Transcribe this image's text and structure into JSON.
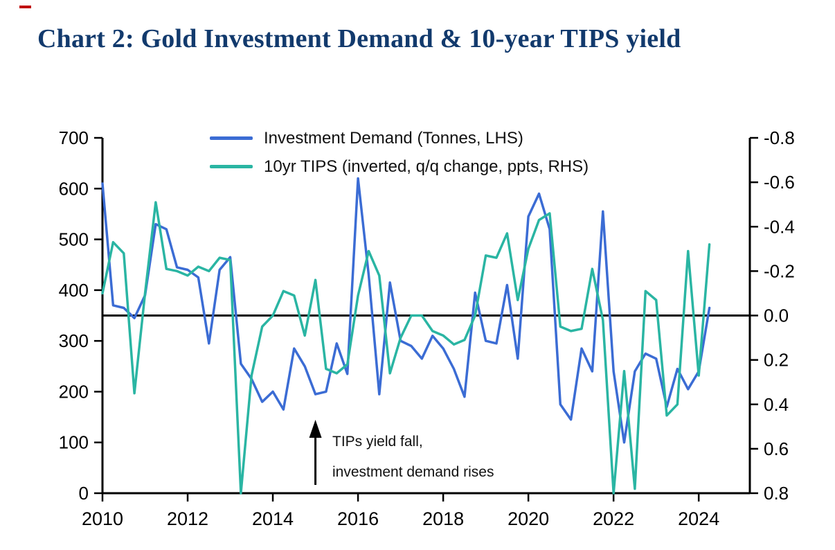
{
  "title": "Chart 2: Gold Investment Demand & 10-year TIPS yield",
  "red_tick_color": "#c00000",
  "title_color": "#123a6d",
  "chart_data": {
    "type": "line",
    "title": "Chart 2: Gold Investment Demand & 10-year TIPS yield",
    "legend_position": "top-center-inside",
    "grid": false,
    "quarters": [
      "2010Q1",
      "2010Q2",
      "2010Q3",
      "2010Q4",
      "2011Q1",
      "2011Q2",
      "2011Q3",
      "2011Q4",
      "2012Q1",
      "2012Q2",
      "2012Q3",
      "2012Q4",
      "2013Q1",
      "2013Q2",
      "2013Q3",
      "2013Q4",
      "2014Q1",
      "2014Q2",
      "2014Q3",
      "2014Q4",
      "2015Q1",
      "2015Q2",
      "2015Q3",
      "2015Q4",
      "2016Q1",
      "2016Q2",
      "2016Q3",
      "2016Q4",
      "2017Q1",
      "2017Q2",
      "2017Q3",
      "2017Q4",
      "2018Q1",
      "2018Q2",
      "2018Q3",
      "2018Q4",
      "2019Q1",
      "2019Q2",
      "2019Q3",
      "2019Q4",
      "2020Q1",
      "2020Q2",
      "2020Q3",
      "2020Q4",
      "2021Q1",
      "2021Q2",
      "2021Q3",
      "2021Q4",
      "2022Q1",
      "2022Q2",
      "2022Q3",
      "2022Q4",
      "2023Q1",
      "2023Q2",
      "2023Q3",
      "2023Q4",
      "2024Q1",
      "2024Q2"
    ],
    "series": [
      {
        "name": "Investment Demand (Tonnes, LHS)",
        "axis": "left",
        "color": "#3b6cd4",
        "values": [
          610,
          370,
          365,
          345,
          390,
          530,
          520,
          445,
          440,
          425,
          295,
          440,
          465,
          255,
          225,
          180,
          200,
          165,
          285,
          250,
          195,
          200,
          295,
          235,
          620,
          430,
          195,
          415,
          300,
          290,
          265,
          310,
          285,
          245,
          190,
          395,
          300,
          295,
          410,
          265,
          545,
          590,
          520,
          175,
          145,
          285,
          240,
          555,
          240,
          100,
          240,
          275,
          265,
          170,
          245,
          205,
          240,
          365
        ]
      },
      {
        "name": "10yr TIPS (inverted, q/q change, ppts, RHS)",
        "axis": "right",
        "color": "#2ab5a3",
        "values": [
          -0.1,
          -0.33,
          -0.28,
          0.35,
          -0.1,
          -0.51,
          -0.21,
          -0.2,
          -0.18,
          -0.22,
          -0.2,
          -0.26,
          -0.25,
          0.8,
          0.27,
          0.05,
          0.0,
          -0.11,
          -0.09,
          0.09,
          -0.16,
          0.24,
          0.26,
          0.22,
          -0.09,
          -0.29,
          -0.18,
          0.26,
          0.1,
          0.0,
          0.0,
          0.07,
          0.09,
          0.13,
          0.11,
          0.0,
          -0.27,
          -0.26,
          -0.37,
          -0.07,
          -0.3,
          -0.43,
          -0.46,
          0.05,
          0.07,
          0.06,
          -0.21,
          0.02,
          0.8,
          0.25,
          0.78,
          -0.11,
          -0.07,
          0.45,
          0.4,
          -0.29,
          0.27,
          -0.32
        ]
      }
    ],
    "left_axis": {
      "min": 0,
      "max": 700,
      "label_values": [
        700,
        600,
        500,
        400,
        300,
        200,
        100,
        0
      ]
    },
    "right_axis": {
      "min": -0.8,
      "max": 0.8,
      "inverted": true,
      "label_values": [
        "-0.8",
        "-0.6",
        "-0.4",
        "-0.2",
        "0.0",
        "0.2",
        "0.4",
        "0.6",
        "0.8"
      ]
    },
    "x_axis": {
      "min": 2010,
      "max": 2025.2,
      "label_values": [
        2010,
        2012,
        2014,
        2016,
        2018,
        2020,
        2022,
        2024
      ]
    },
    "baseline_left_value": 350,
    "annotation": {
      "x_year": 2015.0,
      "lines": [
        "TIPs yield fall,",
        "investment demand rises"
      ]
    }
  }
}
